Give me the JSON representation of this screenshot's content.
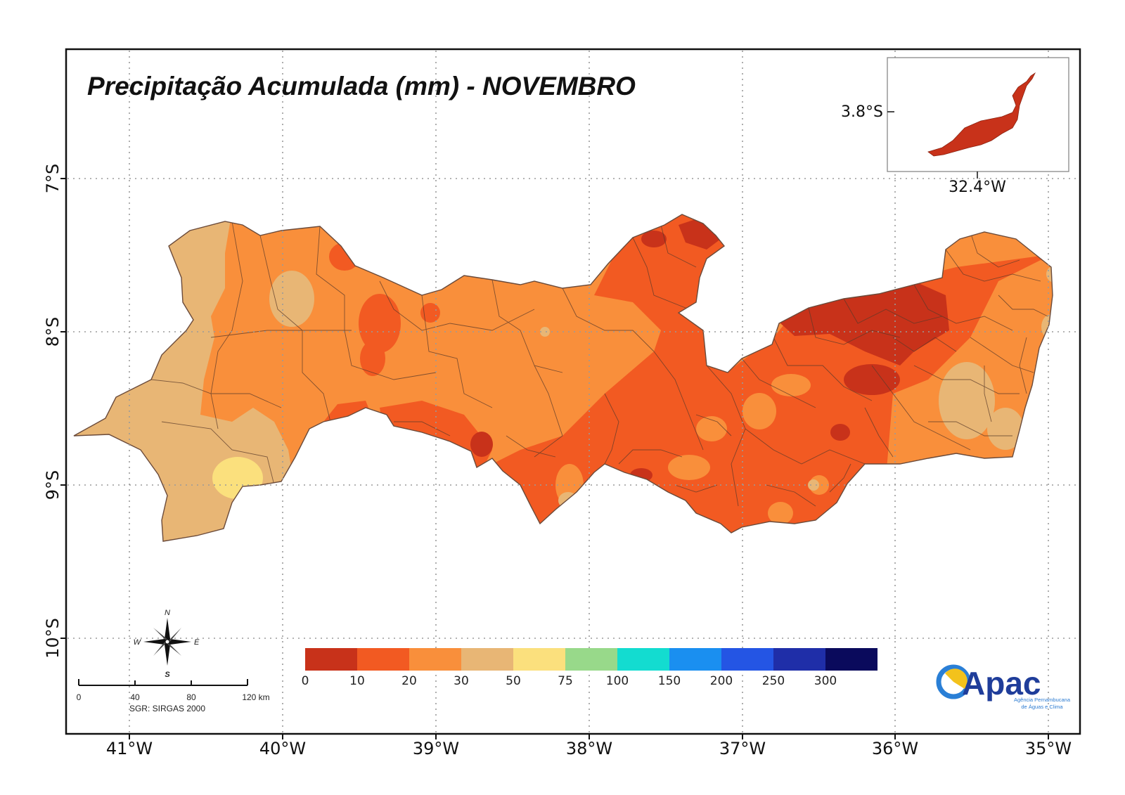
{
  "map": {
    "title": "Precipitação Acumulada (mm) - NOVEMBRO",
    "lat_labels": [
      "7°S",
      "8°S",
      "9°S",
      "10°S"
    ],
    "lon_labels": [
      "41°W",
      "40°W",
      "39°W",
      "38°W",
      "37°W",
      "36°W",
      "35°W"
    ],
    "inset": {
      "lat_label": "3.8°S",
      "lon_label": "32.4°W",
      "fill": "#c8321a"
    }
  },
  "legend": {
    "labels": [
      "0",
      "10",
      "20",
      "30",
      "50",
      "75",
      "100",
      "150",
      "200",
      "250",
      "300"
    ],
    "colors": [
      "#c8321a",
      "#f25a22",
      "#f98f3b",
      "#e8b675",
      "#fbe07d",
      "#98d98a",
      "#13dcd0",
      "#1a8ff0",
      "#2455e4",
      "#1f2ea8",
      "#0a0a5c"
    ]
  },
  "compass": {
    "n": "N",
    "s": "S",
    "e": "E",
    "w": "W"
  },
  "scale_bar": {
    "ticks": [
      "0",
      "40",
      "80",
      "120 km"
    ],
    "crs": "SGR: SIRGAS 2000"
  },
  "logo": {
    "name": "Apac",
    "subtitle_1": "Agência Pernambucana",
    "subtitle_2": "de Águas e Clima"
  }
}
